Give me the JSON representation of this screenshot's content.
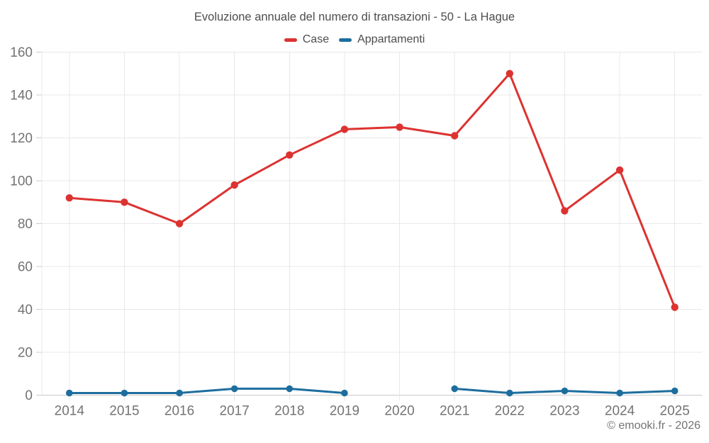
{
  "chart": {
    "title": "Evoluzione annuale del numero di transazioni - 50 - La Hague",
    "footer": "© emooki.fr - 2026"
  },
  "chart_data": {
    "type": "line",
    "title": "Evoluzione annuale del numero di transazioni - 50 - La Hague",
    "categories": [
      "2014",
      "2015",
      "2016",
      "2017",
      "2018",
      "2019",
      "2020",
      "2021",
      "2022",
      "2023",
      "2024",
      "2025"
    ],
    "series": [
      {
        "name": "Case",
        "color": "#dc3331",
        "values": [
          92,
          90,
          80,
          98,
          112,
          124,
          125,
          121,
          150,
          86,
          105,
          41
        ]
      },
      {
        "name": "Appartamenti",
        "color": "#1d6e9e",
        "values": [
          1,
          1,
          1,
          3,
          3,
          1,
          null,
          3,
          1,
          2,
          1,
          2
        ]
      }
    ],
    "xlabel": "",
    "ylabel": "",
    "ylim": [
      0,
      160
    ],
    "ytick_step": 20,
    "grid": true,
    "legend_position": "top",
    "annotation": "© emooki.fr - 2026"
  },
  "colors": {
    "grid": "#e8e8e8",
    "axis": "#cccccc",
    "axis_label": "#737373",
    "title_text": "#4d4d4d",
    "background": "#ffffff"
  }
}
